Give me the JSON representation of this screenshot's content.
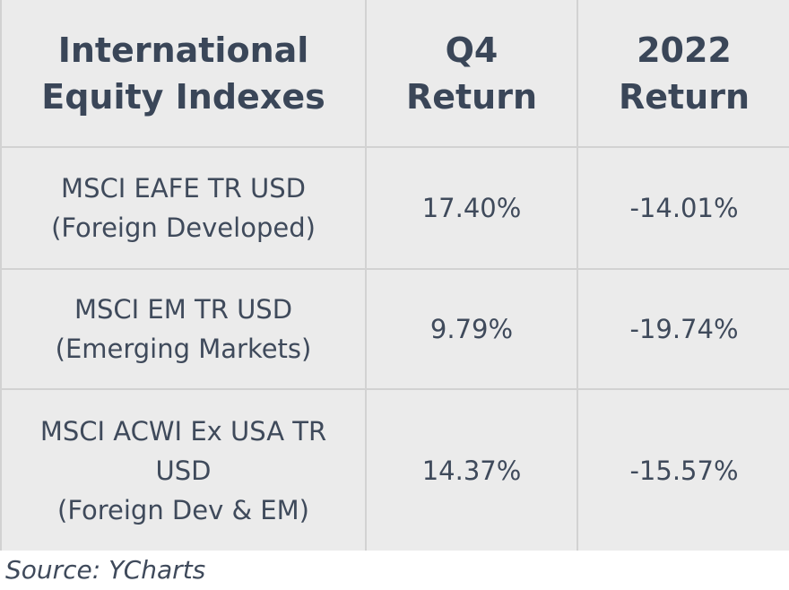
{
  "chart_data": {
    "type": "table",
    "columns": [
      [
        "International",
        "Equity Indexes"
      ],
      [
        "Q4",
        "Return"
      ],
      [
        "2022",
        "Return"
      ]
    ],
    "rows": [
      {
        "index": [
          "MSCI EAFE TR USD",
          "(Foreign Developed)"
        ],
        "q4_return": "17.40%",
        "year_return": "-14.01%"
      },
      {
        "index": [
          "MSCI EM TR USD",
          "(Emerging Markets)"
        ],
        "q4_return": "9.79%",
        "year_return": "-19.74%"
      },
      {
        "index": [
          "MSCI ACWI Ex USA TR",
          "USD",
          "(Foreign Dev & EM)"
        ],
        "q4_return": "14.37%",
        "year_return": "-15.57%"
      }
    ],
    "source": "Source: YCharts"
  },
  "colors": {
    "cell_background": "#ebebeb",
    "grid_line": "#d2d2d2",
    "text": "#384457"
  }
}
